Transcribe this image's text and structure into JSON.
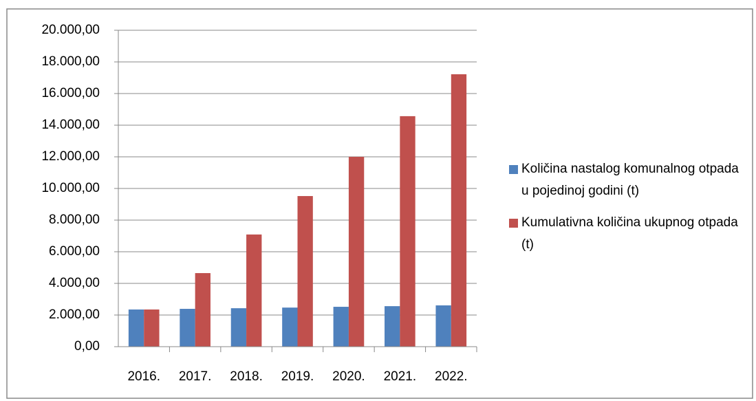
{
  "chart_data": {
    "type": "bar",
    "categories": [
      "2016.",
      "2017.",
      "2018.",
      "2019.",
      "2020.",
      "2021.",
      "2022."
    ],
    "series": [
      {
        "name": "Količina nastalog komunalnog otpada u pojedinoj godini (t)",
        "color": "#4f81bd",
        "values": [
          2350,
          2390,
          2430,
          2470,
          2520,
          2560,
          2610
        ]
      },
      {
        "name": "Kumulativna količina ukupnog otpada (t)",
        "color": "#c0504d",
        "values": [
          2350,
          4650,
          7090,
          9520,
          12000,
          14570,
          17220
        ]
      }
    ],
    "ylim": [
      0,
      20000
    ],
    "yticks": [
      {
        "value": 0,
        "label": "0,00"
      },
      {
        "value": 2000,
        "label": "2.000,00"
      },
      {
        "value": 4000,
        "label": "4.000,00"
      },
      {
        "value": 6000,
        "label": "6.000,00"
      },
      {
        "value": 8000,
        "label": "8.000,00"
      },
      {
        "value": 10000,
        "label": "10.000,00"
      },
      {
        "value": 12000,
        "label": "12.000,00"
      },
      {
        "value": 14000,
        "label": "14.000,00"
      },
      {
        "value": 16000,
        "label": "16.000,00"
      },
      {
        "value": 18000,
        "label": "18.000,00"
      },
      {
        "value": 20000,
        "label": "20.000,00"
      }
    ],
    "grid": true,
    "legend": "right"
  }
}
